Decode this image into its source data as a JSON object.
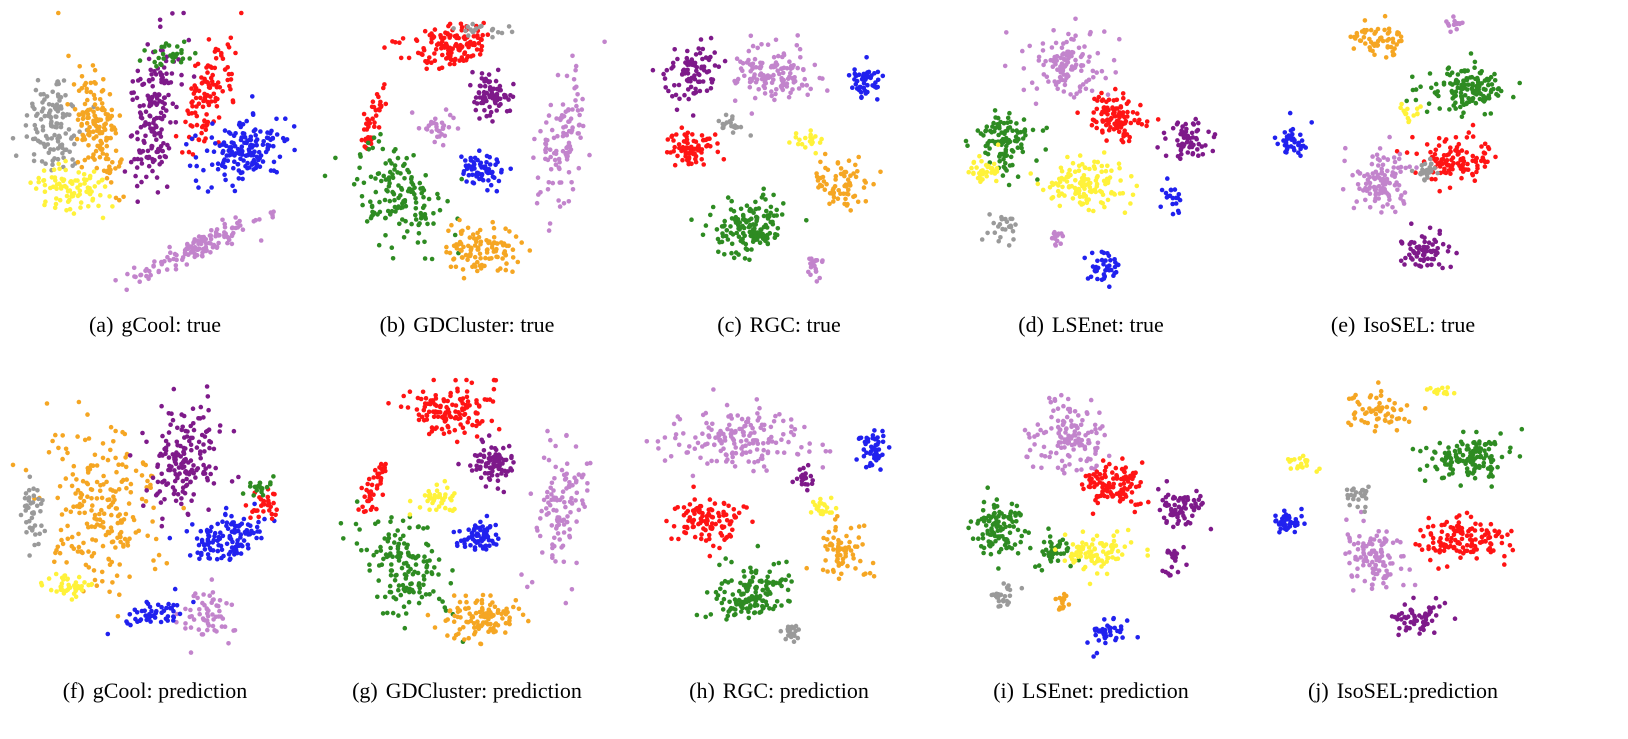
{
  "colors": {
    "gray": "#9a9a9a",
    "orange": "#f5a623",
    "yellow": "#fff23a",
    "purple": "#7e1a8a",
    "green": "#2e8b22",
    "red": "#ff1414",
    "blue": "#2121ee",
    "lavender": "#c284cc"
  },
  "chart_data": [
    {
      "type": "scatter",
      "tag": "(a)",
      "title": "gCool: true",
      "clusters": [
        {
          "color": "gray",
          "cx": 0.15,
          "cy": 0.4,
          "rx": 0.1,
          "ry": 0.18,
          "n": 120,
          "angle": 0
        },
        {
          "color": "orange",
          "cx": 0.3,
          "cy": 0.4,
          "rx": 0.07,
          "ry": 0.22,
          "n": 150,
          "angle": -10
        },
        {
          "color": "yellow",
          "cx": 0.22,
          "cy": 0.62,
          "rx": 0.12,
          "ry": 0.08,
          "n": 90,
          "angle": 10
        },
        {
          "color": "purple",
          "cx": 0.5,
          "cy": 0.35,
          "rx": 0.08,
          "ry": 0.25,
          "n": 170,
          "angle": 10
        },
        {
          "color": "red",
          "cx": 0.68,
          "cy": 0.3,
          "rx": 0.06,
          "ry": 0.2,
          "n": 110,
          "angle": 20
        },
        {
          "color": "blue",
          "cx": 0.8,
          "cy": 0.48,
          "rx": 0.16,
          "ry": 0.1,
          "n": 160,
          "angle": -25
        },
        {
          "color": "green",
          "cx": 0.55,
          "cy": 0.15,
          "rx": 0.08,
          "ry": 0.05,
          "n": 30,
          "angle": 0
        },
        {
          "color": "lavender",
          "cx": 0.65,
          "cy": 0.82,
          "rx": 0.25,
          "ry": 0.04,
          "n": 140,
          "angle": -25
        }
      ]
    },
    {
      "type": "scatter",
      "tag": "(b)",
      "title": "GDCluster: true",
      "clusters": [
        {
          "color": "red",
          "cx": 0.45,
          "cy": 0.12,
          "rx": 0.15,
          "ry": 0.08,
          "n": 130,
          "angle": 0
        },
        {
          "color": "red",
          "cx": 0.18,
          "cy": 0.38,
          "rx": 0.03,
          "ry": 0.12,
          "n": 40,
          "angle": 20
        },
        {
          "color": "green",
          "cx": 0.28,
          "cy": 0.65,
          "rx": 0.13,
          "ry": 0.2,
          "n": 150,
          "angle": -30
        },
        {
          "color": "purple",
          "cx": 0.58,
          "cy": 0.3,
          "rx": 0.07,
          "ry": 0.07,
          "n": 80,
          "angle": 0
        },
        {
          "color": "lavender",
          "cx": 0.83,
          "cy": 0.45,
          "rx": 0.08,
          "ry": 0.25,
          "n": 110,
          "angle": 10
        },
        {
          "color": "lavender",
          "cx": 0.4,
          "cy": 0.4,
          "rx": 0.06,
          "ry": 0.05,
          "n": 30,
          "angle": 0
        },
        {
          "color": "blue",
          "cx": 0.55,
          "cy": 0.55,
          "rx": 0.07,
          "ry": 0.06,
          "n": 70,
          "angle": 0
        },
        {
          "color": "orange",
          "cx": 0.55,
          "cy": 0.83,
          "rx": 0.13,
          "ry": 0.08,
          "n": 110,
          "angle": 0
        },
        {
          "color": "gray",
          "cx": 0.55,
          "cy": 0.07,
          "rx": 0.12,
          "ry": 0.02,
          "n": 20,
          "angle": 0
        }
      ]
    },
    {
      "type": "scatter",
      "tag": "(c)",
      "title": "RGC: true",
      "clusters": [
        {
          "color": "purple",
          "cx": 0.2,
          "cy": 0.22,
          "rx": 0.09,
          "ry": 0.1,
          "n": 90,
          "angle": 0
        },
        {
          "color": "lavender",
          "cx": 0.48,
          "cy": 0.22,
          "rx": 0.13,
          "ry": 0.1,
          "n": 140,
          "angle": 0
        },
        {
          "color": "blue",
          "cx": 0.8,
          "cy": 0.25,
          "rx": 0.05,
          "ry": 0.06,
          "n": 50,
          "angle": 0
        },
        {
          "color": "red",
          "cx": 0.2,
          "cy": 0.48,
          "rx": 0.09,
          "ry": 0.06,
          "n": 80,
          "angle": 0
        },
        {
          "color": "green",
          "cx": 0.4,
          "cy": 0.75,
          "rx": 0.14,
          "ry": 0.09,
          "n": 150,
          "angle": -15
        },
        {
          "color": "orange",
          "cx": 0.72,
          "cy": 0.6,
          "rx": 0.1,
          "ry": 0.1,
          "n": 70,
          "angle": 0
        },
        {
          "color": "yellow",
          "cx": 0.6,
          "cy": 0.45,
          "rx": 0.04,
          "ry": 0.03,
          "n": 20,
          "angle": 0
        },
        {
          "color": "gray",
          "cx": 0.33,
          "cy": 0.4,
          "rx": 0.04,
          "ry": 0.03,
          "n": 20,
          "angle": 0
        },
        {
          "color": "lavender",
          "cx": 0.62,
          "cy": 0.88,
          "rx": 0.03,
          "ry": 0.04,
          "n": 20,
          "angle": 0
        }
      ]
    },
    {
      "type": "scatter",
      "tag": "(d)",
      "title": "LSEnet: true",
      "clusters": [
        {
          "color": "lavender",
          "cx": 0.42,
          "cy": 0.18,
          "rx": 0.14,
          "ry": 0.12,
          "n": 120,
          "angle": 0
        },
        {
          "color": "red",
          "cx": 0.58,
          "cy": 0.37,
          "rx": 0.1,
          "ry": 0.08,
          "n": 110,
          "angle": 0
        },
        {
          "color": "purple",
          "cx": 0.84,
          "cy": 0.45,
          "rx": 0.08,
          "ry": 0.06,
          "n": 60,
          "angle": 0
        },
        {
          "color": "green",
          "cx": 0.2,
          "cy": 0.45,
          "rx": 0.12,
          "ry": 0.12,
          "n": 110,
          "angle": 0
        },
        {
          "color": "yellow",
          "cx": 0.48,
          "cy": 0.6,
          "rx": 0.15,
          "ry": 0.07,
          "n": 130,
          "angle": 0
        },
        {
          "color": "yellow",
          "cx": 0.13,
          "cy": 0.55,
          "rx": 0.06,
          "ry": 0.05,
          "n": 40,
          "angle": 0
        },
        {
          "color": "gray",
          "cx": 0.2,
          "cy": 0.75,
          "rx": 0.05,
          "ry": 0.05,
          "n": 25,
          "angle": 0
        },
        {
          "color": "lavender",
          "cx": 0.38,
          "cy": 0.78,
          "rx": 0.03,
          "ry": 0.03,
          "n": 15,
          "angle": 0
        },
        {
          "color": "blue",
          "cx": 0.55,
          "cy": 0.88,
          "rx": 0.07,
          "ry": 0.05,
          "n": 40,
          "angle": 0
        },
        {
          "color": "blue",
          "cx": 0.78,
          "cy": 0.65,
          "rx": 0.03,
          "ry": 0.06,
          "n": 20,
          "angle": 0
        }
      ]
    },
    {
      "type": "scatter",
      "tag": "(e)",
      "title": "IsoSEL: true",
      "clusters": [
        {
          "color": "orange",
          "cx": 0.42,
          "cy": 0.1,
          "rx": 0.1,
          "ry": 0.06,
          "n": 60,
          "angle": 0
        },
        {
          "color": "green",
          "cx": 0.72,
          "cy": 0.27,
          "rx": 0.14,
          "ry": 0.07,
          "n": 140,
          "angle": 0
        },
        {
          "color": "red",
          "cx": 0.68,
          "cy": 0.52,
          "rx": 0.12,
          "ry": 0.07,
          "n": 110,
          "angle": 0
        },
        {
          "color": "blue",
          "cx": 0.12,
          "cy": 0.45,
          "rx": 0.05,
          "ry": 0.06,
          "n": 40,
          "angle": 0
        },
        {
          "color": "lavender",
          "cx": 0.42,
          "cy": 0.6,
          "rx": 0.1,
          "ry": 0.1,
          "n": 110,
          "angle": 0
        },
        {
          "color": "purple",
          "cx": 0.58,
          "cy": 0.83,
          "rx": 0.08,
          "ry": 0.07,
          "n": 70,
          "angle": 0
        },
        {
          "color": "yellow",
          "cx": 0.52,
          "cy": 0.35,
          "rx": 0.04,
          "ry": 0.03,
          "n": 15,
          "angle": 0
        },
        {
          "color": "gray",
          "cx": 0.58,
          "cy": 0.55,
          "rx": 0.04,
          "ry": 0.04,
          "n": 25,
          "angle": 0
        },
        {
          "color": "lavender",
          "cx": 0.68,
          "cy": 0.05,
          "rx": 0.03,
          "ry": 0.03,
          "n": 15,
          "angle": 0
        }
      ]
    },
    {
      "type": "scatter",
      "tag": "(f)",
      "title": "gCool: prediction",
      "clusters": [
        {
          "color": "orange",
          "cx": 0.32,
          "cy": 0.45,
          "rx": 0.18,
          "ry": 0.28,
          "n": 220,
          "angle": -10
        },
        {
          "color": "gray",
          "cx": 0.08,
          "cy": 0.45,
          "rx": 0.04,
          "ry": 0.12,
          "n": 40,
          "angle": 0
        },
        {
          "color": "yellow",
          "cx": 0.2,
          "cy": 0.72,
          "rx": 0.08,
          "ry": 0.04,
          "n": 40,
          "angle": 0
        },
        {
          "color": "purple",
          "cx": 0.6,
          "cy": 0.28,
          "rx": 0.12,
          "ry": 0.18,
          "n": 170,
          "angle": 10
        },
        {
          "color": "blue",
          "cx": 0.75,
          "cy": 0.55,
          "rx": 0.14,
          "ry": 0.08,
          "n": 120,
          "angle": -25
        },
        {
          "color": "red",
          "cx": 0.88,
          "cy": 0.45,
          "rx": 0.05,
          "ry": 0.05,
          "n": 30,
          "angle": 0
        },
        {
          "color": "green",
          "cx": 0.85,
          "cy": 0.38,
          "rx": 0.05,
          "ry": 0.03,
          "n": 20,
          "angle": 0
        },
        {
          "color": "lavender",
          "cx": 0.68,
          "cy": 0.82,
          "rx": 0.1,
          "ry": 0.08,
          "n": 60,
          "angle": -40
        },
        {
          "color": "blue",
          "cx": 0.5,
          "cy": 0.82,
          "rx": 0.12,
          "ry": 0.04,
          "n": 50,
          "angle": -20
        }
      ]
    },
    {
      "type": "scatter",
      "tag": "(g)",
      "title": "GDCluster: prediction",
      "clusters": [
        {
          "color": "red",
          "cx": 0.45,
          "cy": 0.12,
          "rx": 0.15,
          "ry": 0.08,
          "n": 130,
          "angle": 0
        },
        {
          "color": "red",
          "cx": 0.18,
          "cy": 0.38,
          "rx": 0.03,
          "ry": 0.12,
          "n": 40,
          "angle": 20
        },
        {
          "color": "green",
          "cx": 0.28,
          "cy": 0.65,
          "rx": 0.13,
          "ry": 0.2,
          "n": 150,
          "angle": -30
        },
        {
          "color": "purple",
          "cx": 0.58,
          "cy": 0.3,
          "rx": 0.07,
          "ry": 0.07,
          "n": 80,
          "angle": 0
        },
        {
          "color": "lavender",
          "cx": 0.83,
          "cy": 0.45,
          "rx": 0.08,
          "ry": 0.25,
          "n": 110,
          "angle": 10
        },
        {
          "color": "yellow",
          "cx": 0.4,
          "cy": 0.42,
          "rx": 0.06,
          "ry": 0.05,
          "n": 40,
          "angle": 0
        },
        {
          "color": "blue",
          "cx": 0.55,
          "cy": 0.55,
          "rx": 0.07,
          "ry": 0.06,
          "n": 70,
          "angle": 0
        },
        {
          "color": "orange",
          "cx": 0.55,
          "cy": 0.83,
          "rx": 0.13,
          "ry": 0.08,
          "n": 110,
          "angle": 0
        }
      ]
    },
    {
      "type": "scatter",
      "tag": "(h)",
      "title": "RGC: prediction",
      "clusters": [
        {
          "color": "lavender",
          "cx": 0.35,
          "cy": 0.22,
          "rx": 0.22,
          "ry": 0.1,
          "n": 170,
          "angle": 0
        },
        {
          "color": "blue",
          "cx": 0.82,
          "cy": 0.25,
          "rx": 0.05,
          "ry": 0.06,
          "n": 50,
          "angle": 0
        },
        {
          "color": "red",
          "cx": 0.25,
          "cy": 0.5,
          "rx": 0.12,
          "ry": 0.08,
          "n": 110,
          "angle": 0
        },
        {
          "color": "green",
          "cx": 0.4,
          "cy": 0.75,
          "rx": 0.14,
          "ry": 0.09,
          "n": 150,
          "angle": -15
        },
        {
          "color": "orange",
          "cx": 0.72,
          "cy": 0.6,
          "rx": 0.1,
          "ry": 0.1,
          "n": 70,
          "angle": 0
        },
        {
          "color": "yellow",
          "cx": 0.65,
          "cy": 0.45,
          "rx": 0.05,
          "ry": 0.03,
          "n": 20,
          "angle": 0
        },
        {
          "color": "purple",
          "cx": 0.58,
          "cy": 0.35,
          "rx": 0.04,
          "ry": 0.04,
          "n": 20,
          "angle": 0
        },
        {
          "color": "gray",
          "cx": 0.55,
          "cy": 0.88,
          "rx": 0.03,
          "ry": 0.04,
          "n": 20,
          "angle": 0
        }
      ]
    },
    {
      "type": "scatter",
      "tag": "(i)",
      "title": "LSEnet: prediction",
      "clusters": [
        {
          "color": "lavender",
          "cx": 0.42,
          "cy": 0.2,
          "rx": 0.14,
          "ry": 0.13,
          "n": 130,
          "angle": 0
        },
        {
          "color": "red",
          "cx": 0.58,
          "cy": 0.37,
          "rx": 0.1,
          "ry": 0.08,
          "n": 110,
          "angle": 0
        },
        {
          "color": "purple",
          "cx": 0.82,
          "cy": 0.45,
          "rx": 0.08,
          "ry": 0.07,
          "n": 70,
          "angle": 0
        },
        {
          "color": "green",
          "cx": 0.18,
          "cy": 0.52,
          "rx": 0.1,
          "ry": 0.1,
          "n": 110,
          "angle": 0
        },
        {
          "color": "green",
          "cx": 0.38,
          "cy": 0.6,
          "rx": 0.06,
          "ry": 0.06,
          "n": 40,
          "angle": 0
        },
        {
          "color": "yellow",
          "cx": 0.52,
          "cy": 0.6,
          "rx": 0.11,
          "ry": 0.06,
          "n": 90,
          "angle": 0
        },
        {
          "color": "gray",
          "cx": 0.2,
          "cy": 0.75,
          "rx": 0.05,
          "ry": 0.05,
          "n": 25,
          "angle": 0
        },
        {
          "color": "orange",
          "cx": 0.4,
          "cy": 0.78,
          "rx": 0.03,
          "ry": 0.03,
          "n": 15,
          "angle": 0
        },
        {
          "color": "blue",
          "cx": 0.55,
          "cy": 0.88,
          "rx": 0.07,
          "ry": 0.05,
          "n": 40,
          "angle": 0
        },
        {
          "color": "purple",
          "cx": 0.78,
          "cy": 0.65,
          "rx": 0.03,
          "ry": 0.06,
          "n": 20,
          "angle": 0
        }
      ]
    },
    {
      "type": "scatter",
      "tag": "(j)",
      "title": "IsoSEL:prediction",
      "clusters": [
        {
          "color": "orange",
          "cx": 0.42,
          "cy": 0.12,
          "rx": 0.1,
          "ry": 0.07,
          "n": 60,
          "angle": 0
        },
        {
          "color": "green",
          "cx": 0.72,
          "cy": 0.28,
          "rx": 0.14,
          "ry": 0.07,
          "n": 140,
          "angle": 0
        },
        {
          "color": "red",
          "cx": 0.72,
          "cy": 0.55,
          "rx": 0.16,
          "ry": 0.07,
          "n": 130,
          "angle": 0
        },
        {
          "color": "blue",
          "cx": 0.1,
          "cy": 0.5,
          "rx": 0.05,
          "ry": 0.05,
          "n": 40,
          "angle": 0
        },
        {
          "color": "lavender",
          "cx": 0.4,
          "cy": 0.62,
          "rx": 0.1,
          "ry": 0.1,
          "n": 110,
          "angle": 0
        },
        {
          "color": "purple",
          "cx": 0.55,
          "cy": 0.83,
          "rx": 0.08,
          "ry": 0.06,
          "n": 60,
          "angle": 0
        },
        {
          "color": "yellow",
          "cx": 0.15,
          "cy": 0.3,
          "rx": 0.04,
          "ry": 0.03,
          "n": 20,
          "angle": 0
        },
        {
          "color": "gray",
          "cx": 0.35,
          "cy": 0.42,
          "rx": 0.05,
          "ry": 0.04,
          "n": 25,
          "angle": 0
        },
        {
          "color": "yellow",
          "cx": 0.62,
          "cy": 0.05,
          "rx": 0.04,
          "ry": 0.02,
          "n": 15,
          "angle": 0
        }
      ]
    }
  ]
}
